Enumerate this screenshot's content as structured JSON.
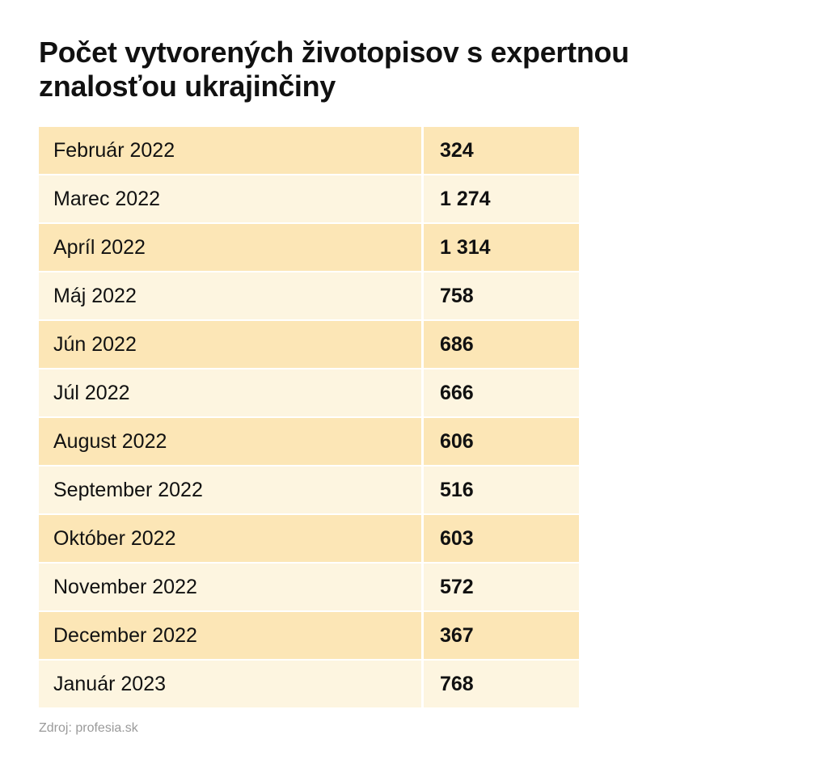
{
  "header": {
    "title": "Počet vytvorených životopisov s expertnou znalosťou ukrajinčiny"
  },
  "table": {
    "rows": [
      [
        "Február 2022",
        "324"
      ],
      [
        "Marec 2022",
        "1 274"
      ],
      [
        "Apríl 2022",
        "1 314"
      ],
      [
        "Máj 2022",
        "758"
      ],
      [
        "Jún 2022",
        "686"
      ],
      [
        "Júl 2022",
        "666"
      ],
      [
        "August 2022",
        "606"
      ],
      [
        "September 2022",
        "516"
      ],
      [
        "Október 2022",
        "603"
      ],
      [
        "November 2022",
        "572"
      ],
      [
        "December 2022",
        "367"
      ],
      [
        "Január 2023",
        "768"
      ]
    ]
  },
  "footer": {
    "source": "Zdroj: profesia.sk"
  }
}
